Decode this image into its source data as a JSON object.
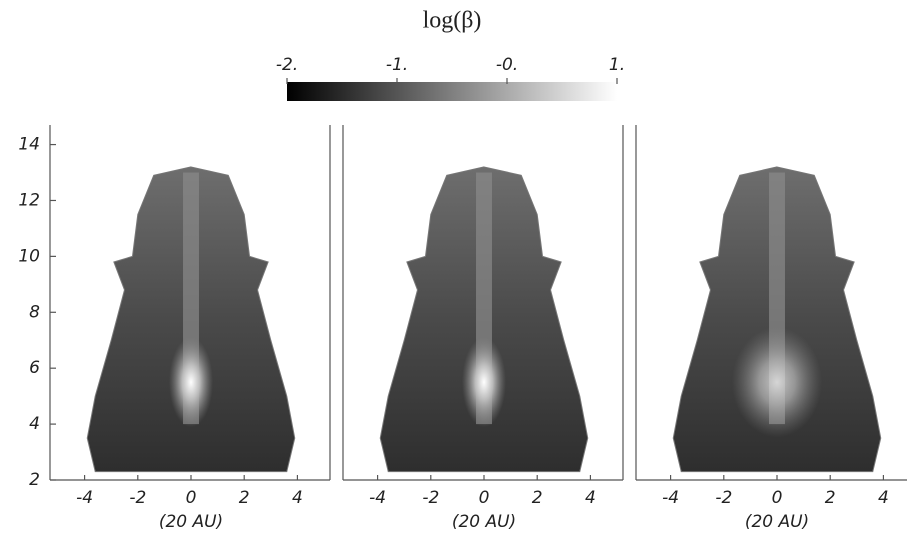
{
  "chart_data": {
    "type": "image",
    "colorbar": {
      "title": "log(β)",
      "lim": [
        -2,
        1
      ],
      "ticks": [
        {
          "value": -2,
          "label": "-2."
        },
        {
          "value": -1,
          "label": "-1."
        },
        {
          "value": 0,
          "label": "-0."
        },
        {
          "value": 1,
          "label": "1."
        }
      ]
    },
    "ylim": [
      2,
      14.7
    ],
    "yticks": [
      2,
      4,
      6,
      8,
      10,
      12,
      14
    ],
    "panels": [
      {
        "xlabel": "(20 AU)",
        "xlim": [
          -5.3,
          5.3
        ],
        "xticks": [
          -4,
          -2,
          0,
          2,
          4
        ]
      },
      {
        "xlabel": "(20 AU)",
        "xlim": [
          -5.3,
          5.3
        ],
        "xticks": [
          -4,
          -2,
          0,
          2,
          4
        ]
      },
      {
        "xlabel": "(20 AU)",
        "xlim": [
          -5.3,
          5.3
        ],
        "xticks": [
          -4,
          -2,
          0,
          2,
          4
        ]
      }
    ]
  }
}
